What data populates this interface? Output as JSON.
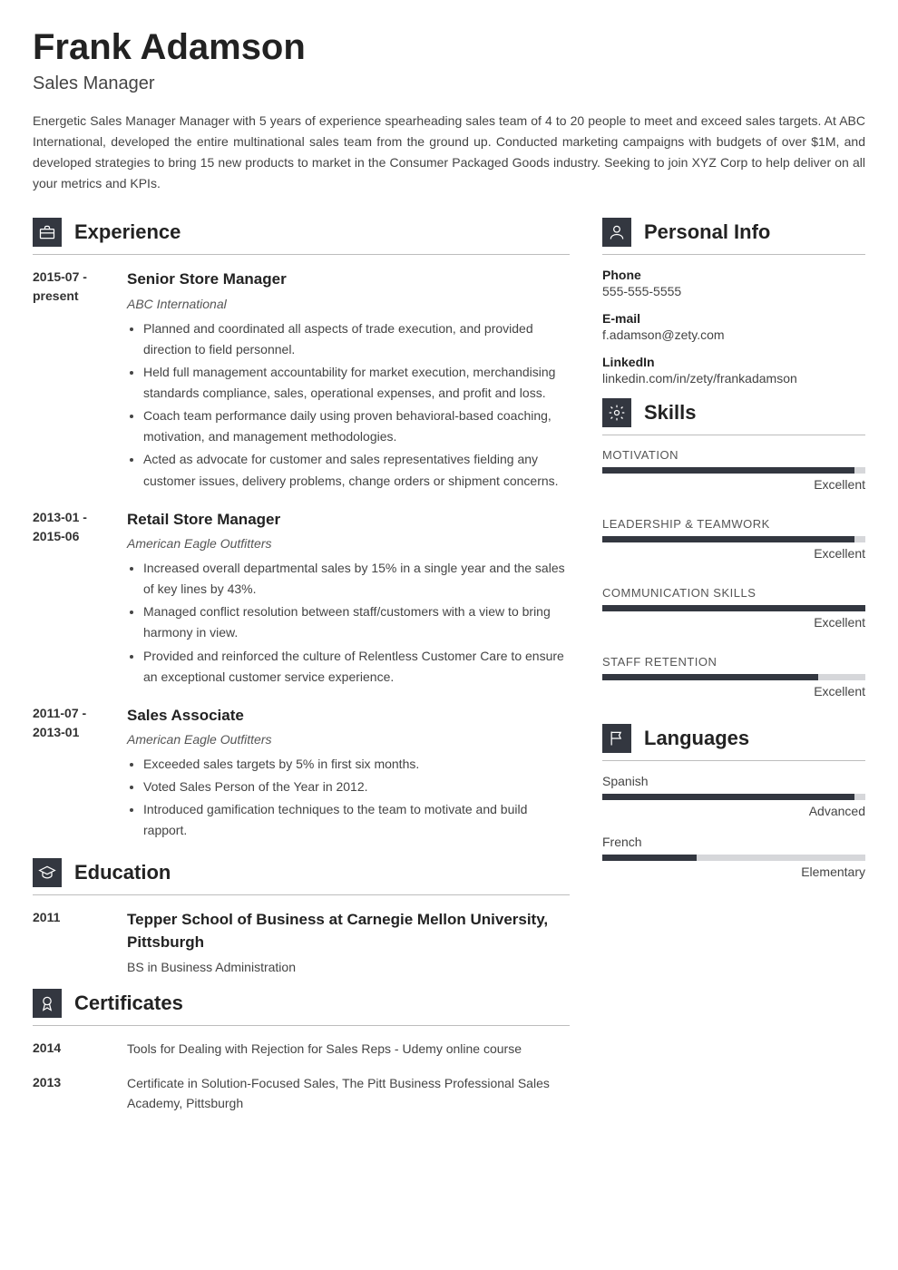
{
  "name": "Frank Adamson",
  "job_title": "Sales Manager",
  "summary": "Energetic Sales Manager Manager with 5 years of experience spearheading sales team of 4 to 20 people to meet and exceed sales targets. At ABC International, developed the entire multinational sales team from the ground up. Conducted marketing campaigns with budgets of over $1M, and developed strategies to bring 15 new products to market in the Consumer Packaged Goods industry. Seeking to join XYZ Corp to help deliver on all your metrics and KPIs.",
  "sections": {
    "experience": "Experience",
    "education": "Education",
    "certificates": "Certificates",
    "personal": "Personal Info",
    "skills": "Skills",
    "languages": "Languages"
  },
  "experience": [
    {
      "date": "2015-07 - present",
      "title": "Senior Store Manager",
      "company": "ABC International",
      "bullets": [
        "Planned and coordinated all aspects of trade execution, and provided direction to field personnel.",
        "Held full management accountability for market execution, merchandising standards compliance, sales, operational expenses, and profit and loss.",
        "Coach team performance daily using proven behavioral-based coaching, motivation, and management methodologies.",
        "Acted as advocate for customer and sales representatives fielding any customer issues, delivery problems, change orders or shipment concerns."
      ]
    },
    {
      "date": "2013-01 - 2015-06",
      "title": "Retail Store Manager",
      "company": "American Eagle Outfitters",
      "bullets": [
        "Increased overall departmental sales by 15% in a single year and the sales of key lines by 43%.",
        "Managed conflict resolution between staff/customers with a view to bring harmony in view.",
        "Provided and reinforced the culture of Relentless Customer Care to ensure an exceptional customer service experience."
      ]
    },
    {
      "date": "2011-07 - 2013-01",
      "title": "Sales Associate",
      "company": "American Eagle Outfitters",
      "bullets": [
        "Exceeded sales targets by 5% in first six months.",
        "Voted Sales Person of the Year in 2012.",
        "Introduced gamification techniques to the team to motivate and build rapport."
      ]
    }
  ],
  "education": [
    {
      "date": "2011",
      "title": "Tepper School of Business at Carnegie Mellon University, Pittsburgh",
      "degree": "BS in Business Administration"
    }
  ],
  "certificates": [
    {
      "date": "2014",
      "text": "Tools for Dealing with Rejection for Sales Reps - Udemy online course"
    },
    {
      "date": "2013",
      "text": "Certificate in Solution-Focused Sales, The Pitt Business Professional Sales Academy, Pittsburgh"
    }
  ],
  "personal": {
    "phone_label": "Phone",
    "phone": "555-555-5555",
    "email_label": "E-mail",
    "email": "f.adamson@zety.com",
    "linkedin_label": "LinkedIn",
    "linkedin": "linkedin.com/in/zety/frankadamson"
  },
  "skills": [
    {
      "name": "MOTIVATION",
      "pct": 96,
      "level": "Excellent"
    },
    {
      "name": "LEADERSHIP & TEAMWORK",
      "pct": 96,
      "level": "Excellent"
    },
    {
      "name": "COMMUNICATION SKILLS",
      "pct": 100,
      "level": "Excellent"
    },
    {
      "name": "STAFF RETENTION",
      "pct": 82,
      "level": "Excellent"
    }
  ],
  "languages": [
    {
      "name": "Spanish",
      "pct": 96,
      "level": "Advanced"
    },
    {
      "name": "French",
      "pct": 36,
      "level": "Elementary"
    }
  ],
  "colors": {
    "icon_bg": "#333740",
    "bar_fill": "#333740",
    "bar_bg": "#d6d7da"
  }
}
